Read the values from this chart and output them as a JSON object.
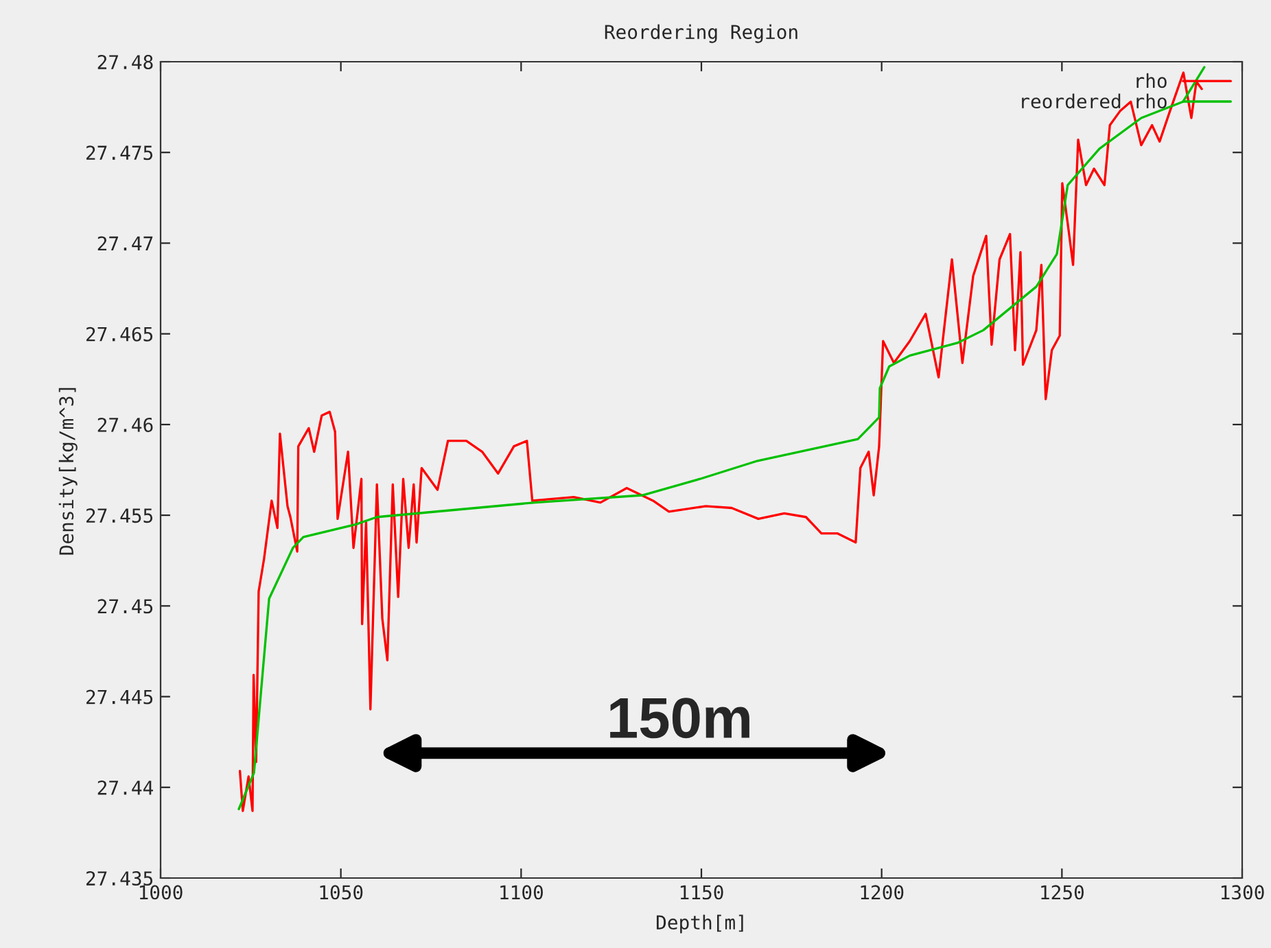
{
  "chart_data": {
    "type": "line",
    "title": "Reordering Region",
    "xlabel": "Depth[m]",
    "ylabel": "Density[kg/m^3]",
    "annotations": [
      "150m"
    ],
    "xlim": [
      1000,
      1300
    ],
    "xticks": [
      1000,
      1050,
      1100,
      1150,
      1200,
      1250,
      1300
    ],
    "ylim": [
      27.435,
      27.48
    ],
    "yticks": [
      27.435,
      27.44,
      27.445,
      27.45,
      27.455,
      27.46,
      27.465,
      27.47,
      27.475,
      27.48
    ],
    "grid": false,
    "legend": "top right",
    "line_style": "solid",
    "marker": "none",
    "series": [
      {
        "name": "rho",
        "color": "#ff0000",
        "x": [
          1022.0,
          1022.8,
          1024.4,
          1025.5,
          1025.8,
          1026.5,
          1027.2,
          1028.7,
          1030.8,
          1032.4,
          1033.1,
          1035.2,
          1036.0,
          1037.9,
          1038.2,
          1041.1,
          1042.6,
          1044.7,
          1046.9,
          1048.4,
          1049.1,
          1052.0,
          1053.5,
          1055.7,
          1055.9,
          1057.0,
          1058.2,
          1060.0,
          1061.5,
          1062.9,
          1064.4,
          1065.9,
          1067.3,
          1068.8,
          1070.2,
          1071.0,
          1072.4,
          1076.8,
          1079.7,
          1084.8,
          1089.2,
          1093.6,
          1098.0,
          1101.6,
          1103.1,
          1114.6,
          1122.0,
          1129.3,
          1136.6,
          1141.0,
          1151.2,
          1158.4,
          1165.8,
          1173.0,
          1179.0,
          1183.3,
          1187.7,
          1192.8,
          1194.1,
          1196.4,
          1197.8,
          1199.3,
          1200.4,
          1203.4,
          1207.8,
          1212.2,
          1215.8,
          1219.5,
          1222.4,
          1225.4,
          1229.0,
          1230.5,
          1232.7,
          1235.6,
          1237.0,
          1238.5,
          1239.2,
          1242.9,
          1244.3,
          1245.5,
          1247.2,
          1249.4,
          1250.1,
          1251.6,
          1253.1,
          1254.5,
          1256.7,
          1258.9,
          1261.8,
          1263.3,
          1266.2,
          1269.1,
          1272.0,
          1275.0,
          1277.1,
          1280.0,
          1283.7,
          1285.9,
          1287.3,
          1288.8
        ],
        "values": [
          27.4409,
          27.4387,
          27.4406,
          27.4387,
          27.4462,
          27.4414,
          27.4508,
          27.4526,
          27.4558,
          27.4543,
          27.4595,
          27.4555,
          27.4549,
          27.453,
          27.4588,
          27.4598,
          27.4585,
          27.4605,
          27.4607,
          27.4596,
          27.4548,
          27.4585,
          27.4532,
          27.457,
          27.449,
          27.4546,
          27.4443,
          27.4567,
          27.4493,
          27.447,
          27.4567,
          27.4505,
          27.457,
          27.4532,
          27.4567,
          27.4535,
          27.4576,
          27.4564,
          27.4591,
          27.4591,
          27.4585,
          27.4573,
          27.4588,
          27.4591,
          27.4558,
          27.456,
          27.4557,
          27.4565,
          27.4558,
          27.4552,
          27.4555,
          27.4554,
          27.4548,
          27.4551,
          27.4549,
          27.454,
          27.454,
          27.4535,
          27.4576,
          27.4585,
          27.4561,
          27.4588,
          27.4646,
          27.4634,
          27.4646,
          27.4661,
          27.4626,
          27.4691,
          27.4634,
          27.4682,
          27.4704,
          27.4644,
          27.4691,
          27.4705,
          27.4641,
          27.4695,
          27.4633,
          27.4652,
          27.4688,
          27.4614,
          27.4641,
          27.4649,
          27.4733,
          27.4711,
          27.4688,
          27.4757,
          27.4732,
          27.4741,
          27.4732,
          27.4765,
          27.4773,
          27.4778,
          27.4754,
          27.4765,
          27.4756,
          27.4773,
          27.4794,
          27.4769,
          27.4789,
          27.4785
        ]
      },
      {
        "name": "reordered rho",
        "color": "#00c000",
        "x": [
          1021.7,
          1025.9,
          1030.1,
          1036.7,
          1039.6,
          1054.2,
          1060.0,
          1103.8,
          1133.6,
          1149.6,
          1165.6,
          1193.4,
          1199.3,
          1199.5,
          1202.1,
          1207.8,
          1221.0,
          1228.2,
          1242.9,
          1248.6,
          1251.6,
          1260.4,
          1272.0,
          1283.6,
          1289.5
        ],
        "values": [
          27.4388,
          27.4408,
          27.4504,
          27.4532,
          27.4538,
          27.4545,
          27.4549,
          27.4557,
          27.4561,
          27.457,
          27.458,
          27.4592,
          27.4604,
          27.462,
          27.4632,
          27.4638,
          27.4645,
          27.4652,
          27.4676,
          27.4694,
          27.4732,
          27.4752,
          27.4769,
          27.4778,
          27.4797
        ]
      }
    ]
  }
}
